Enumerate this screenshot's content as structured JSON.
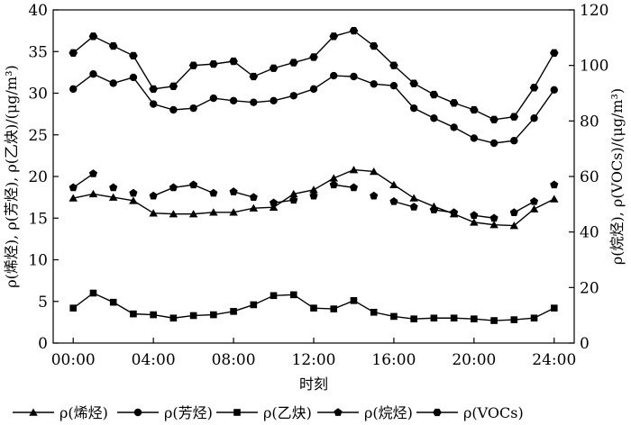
{
  "chart_data": {
    "type": "line",
    "xlabel": "时刻",
    "ylabel_left": "ρ(烯烃), ρ(芳烃), ρ(乙炔)/(μg/m³)",
    "ylabel_right": "ρ(烷烃), ρ(VOCs)/(μg/m³)",
    "x": [
      0,
      1,
      2,
      3,
      4,
      5,
      6,
      7,
      8,
      9,
      10,
      11,
      12,
      13,
      14,
      15,
      16,
      17,
      18,
      19,
      20,
      21,
      22,
      23,
      24
    ],
    "xticks": [
      0,
      4,
      8,
      12,
      16,
      20,
      24
    ],
    "xtick_labels": [
      "00:00",
      "04:00",
      "08:00",
      "12:00",
      "16:00",
      "20:00",
      "24:00"
    ],
    "xlim": [
      -1,
      25
    ],
    "ylim_left": [
      0,
      40
    ],
    "yticks_left": [
      0,
      5,
      10,
      15,
      20,
      25,
      30,
      35,
      40
    ],
    "ylim_right": [
      0,
      120
    ],
    "yticks_right": [
      0,
      20,
      40,
      60,
      80,
      100,
      120
    ],
    "grid": false,
    "legend_position": "bottom",
    "series": [
      {
        "name": "ρ(烯烃)",
        "axis": "left",
        "marker": "triangle",
        "values": [
          17.4,
          17.9,
          17.5,
          17.1,
          15.6,
          15.5,
          15.5,
          15.7,
          15.7,
          16.2,
          16.3,
          17.9,
          18.4,
          19.8,
          20.8,
          20.6,
          19.0,
          17.4,
          16.4,
          15.5,
          14.5,
          14.2,
          14.1,
          16.1,
          17.3
        ]
      },
      {
        "name": "ρ(芳烃)",
        "axis": "left",
        "marker": "circle",
        "values": [
          30.5,
          32.3,
          31.2,
          31.9,
          28.7,
          28.0,
          28.2,
          29.4,
          29.1,
          28.9,
          29.1,
          29.7,
          30.5,
          32.1,
          32.0,
          31.1,
          30.9,
          28.2,
          27.0,
          25.9,
          24.6,
          24.0,
          24.3,
          27.0,
          30.4
        ]
      },
      {
        "name": "ρ(乙炔)",
        "axis": "left",
        "marker": "square",
        "values": [
          4.2,
          6.0,
          4.9,
          3.5,
          3.4,
          3.0,
          3.3,
          3.4,
          3.8,
          4.6,
          5.7,
          5.8,
          4.2,
          4.1,
          5.1,
          3.7,
          3.2,
          2.9,
          3.0,
          3.0,
          2.9,
          2.7,
          2.8,
          3.0,
          4.2
        ]
      },
      {
        "name": "ρ(烷烃)",
        "axis": "right",
        "marker": "pentagon",
        "values": [
          56.0,
          61.0,
          56.0,
          54.0,
          53.0,
          56.0,
          57.0,
          54.0,
          54.5,
          52.5,
          50.5,
          51.5,
          53.0,
          57.0,
          56.0,
          53.0,
          51.0,
          49.0,
          48.0,
          47.0,
          46.0,
          45.0,
          47.0,
          51.0,
          57.0
        ]
      },
      {
        "name": "ρ(VOCs)",
        "axis": "right",
        "marker": "hexagon",
        "values": [
          104.5,
          110.5,
          107.0,
          103.5,
          91.5,
          92.5,
          100.0,
          100.5,
          101.5,
          96.0,
          99.0,
          101.0,
          103.0,
          110.5,
          112.5,
          107.0,
          100.0,
          93.5,
          89.5,
          86.5,
          84.0,
          80.5,
          81.5,
          92.0,
          104.5
        ]
      }
    ],
    "gaps": {
      "ρ(烷烃)": [
        [
          0,
          1
        ],
        [
          4,
          5,
          6,
          7
        ],
        [
          8,
          9
        ],
        [
          10,
          11
        ],
        [
          13,
          14
        ],
        [
          16,
          17
        ],
        [
          18,
          19
        ],
        [
          20,
          21
        ],
        [
          22,
          23
        ]
      ]
    }
  }
}
